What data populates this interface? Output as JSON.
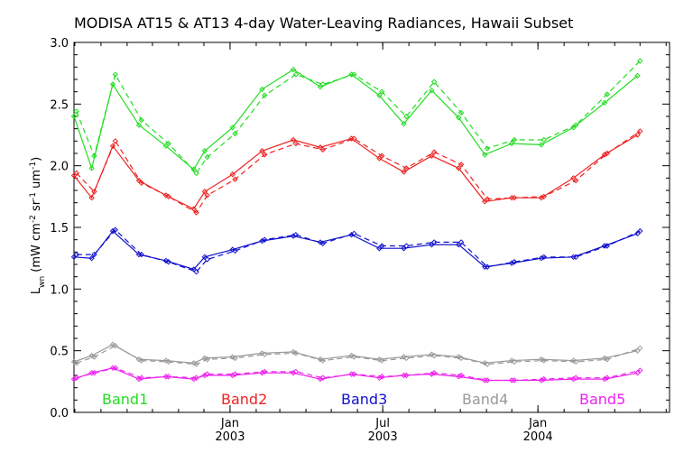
{
  "chart_data": {
    "type": "line",
    "title": "MODISA AT15 & AT13 4-day Water-Leaving Radiances, Hawaii Subset",
    "ylabel": {
      "base": "L",
      "sub": "wn",
      "units_open": " (mW cm",
      "exp1": "-2",
      "mid": " sr",
      "exp2": "-1",
      "um": " um",
      "exp3": "-1",
      "close": ")"
    },
    "ylim": [
      0,
      3.0
    ],
    "yticks": [
      "0.0",
      "0.5",
      "1.0",
      "1.5",
      "2.0",
      "2.5",
      "3.0"
    ],
    "xlim": [
      "2002-06-30",
      "2004-06-05"
    ],
    "xticks": [
      {
        "date": "2003-01-01",
        "month": "Jan",
        "year": "2003"
      },
      {
        "date": "2003-07-01",
        "month": "Jul",
        "year": "2003"
      },
      {
        "date": "2004-01-01",
        "month": "Jan",
        "year": "2004"
      }
    ],
    "grid": false,
    "legend": "bottom",
    "x": [
      "2002-06-30",
      "2002-07-31",
      "2002-09-01",
      "2002-10-03",
      "2002-11-04",
      "2002-12-06",
      "2003-01-01",
      "2003-02-02",
      "2003-03-06",
      "2003-04-06",
      "2003-05-08",
      "2003-06-09",
      "2003-07-01",
      "2003-08-02",
      "2003-09-02",
      "2003-10-04",
      "2003-11-05",
      "2003-12-07",
      "2004-01-01",
      "2004-02-02",
      "2004-03-05",
      "2004-04-05",
      "2004-05-07",
      "2004-06-05"
    ],
    "series": [
      {
        "name": "Band1",
        "color": "#22dd22",
        "solid": [
          2.4,
          1.98,
          2.66,
          2.33,
          2.16,
          1.97,
          2.12,
          2.31,
          2.62,
          2.78,
          2.64,
          2.74,
          2.57,
          2.34,
          2.61,
          2.39,
          2.09,
          2.18,
          2.17,
          2.31,
          2.51,
          2.73
        ],
        "dashed": [
          2.44,
          2.08,
          2.74,
          2.37,
          2.18,
          1.94,
          2.07,
          2.26,
          2.57,
          2.74,
          2.66,
          2.74,
          2.6,
          2.4,
          2.68,
          2.43,
          2.14,
          2.21,
          2.21,
          2.33,
          2.58,
          2.85
        ]
      },
      {
        "name": "Band2",
        "color": "#ee2222",
        "solid": [
          1.92,
          1.74,
          2.16,
          1.88,
          1.76,
          1.65,
          1.79,
          1.93,
          2.12,
          2.21,
          2.15,
          2.22,
          2.06,
          1.95,
          2.08,
          1.98,
          1.71,
          1.74,
          1.74,
          1.9,
          2.09,
          2.25
        ],
        "dashed": [
          1.94,
          1.79,
          2.2,
          1.86,
          1.75,
          1.62,
          1.76,
          1.89,
          2.09,
          2.18,
          2.13,
          2.22,
          2.08,
          1.98,
          2.11,
          2.01,
          1.73,
          1.74,
          1.75,
          1.88,
          2.1,
          2.28
        ]
      },
      {
        "name": "Band3",
        "color": "#1111cc",
        "solid": [
          1.26,
          1.25,
          1.47,
          1.28,
          1.23,
          1.16,
          1.26,
          1.32,
          1.39,
          1.43,
          1.38,
          1.44,
          1.33,
          1.33,
          1.36,
          1.36,
          1.18,
          1.21,
          1.25,
          1.26,
          1.35,
          1.45
        ],
        "dashed": [
          1.28,
          1.28,
          1.48,
          1.28,
          1.22,
          1.14,
          1.24,
          1.31,
          1.4,
          1.44,
          1.37,
          1.45,
          1.35,
          1.35,
          1.38,
          1.38,
          1.18,
          1.22,
          1.26,
          1.26,
          1.35,
          1.47
        ]
      },
      {
        "name": "Band4",
        "color": "#999999",
        "solid": [
          0.41,
          0.46,
          0.55,
          0.43,
          0.42,
          0.4,
          0.44,
          0.45,
          0.48,
          0.49,
          0.43,
          0.46,
          0.43,
          0.45,
          0.47,
          0.45,
          0.4,
          0.42,
          0.43,
          0.42,
          0.44,
          0.5
        ],
        "dashed": [
          0.4,
          0.45,
          0.54,
          0.42,
          0.41,
          0.39,
          0.43,
          0.44,
          0.47,
          0.48,
          0.42,
          0.45,
          0.42,
          0.44,
          0.46,
          0.44,
          0.39,
          0.41,
          0.42,
          0.41,
          0.43,
          0.52
        ]
      },
      {
        "name": "Band5",
        "color": "#ee22ee",
        "solid": [
          0.27,
          0.32,
          0.36,
          0.27,
          0.29,
          0.27,
          0.3,
          0.3,
          0.32,
          0.32,
          0.27,
          0.31,
          0.28,
          0.3,
          0.31,
          0.29,
          0.26,
          0.26,
          0.26,
          0.27,
          0.27,
          0.32
        ],
        "dashed": [
          0.28,
          0.32,
          0.36,
          0.28,
          0.29,
          0.28,
          0.31,
          0.31,
          0.33,
          0.33,
          0.28,
          0.31,
          0.29,
          0.3,
          0.32,
          0.3,
          0.26,
          0.26,
          0.27,
          0.28,
          0.28,
          0.34
        ]
      }
    ],
    "x_index_solid": [
      0,
      1,
      2,
      3,
      4,
      5,
      6,
      7,
      8,
      9,
      10,
      11,
      12,
      13,
      14,
      15,
      16,
      17,
      18,
      19,
      20,
      21
    ],
    "x_dates": [
      "2002-06-30",
      "2002-07-21",
      "2002-08-15",
      "2002-09-15",
      "2002-10-17",
      "2002-11-19",
      "2002-12-02",
      "2002-12-31",
      "2003-02-03",
      "2003-03-07",
      "2003-04-10",
      "2003-05-11",
      "2003-06-13",
      "2003-07-13",
      "2003-08-18",
      "2003-09-16",
      "2003-10-17",
      "2003-11-17",
      "2003-12-28",
      "2004-01-29",
      "2004-02-28",
      "2004-04-02",
      "2004-05-06",
      "2004-06-05"
    ],
    "point_dates": [
      "2002-06-30",
      "2002-07-21",
      "2002-08-15",
      "2002-09-15",
      "2002-10-17",
      "2002-11-19",
      "2002-12-02",
      "2003-01-04",
      "2003-02-08",
      "2003-03-17",
      "2003-04-18",
      "2003-05-25",
      "2003-06-27",
      "2003-07-26",
      "2003-08-28",
      "2003-09-29",
      "2003-10-30",
      "2003-12-01",
      "2004-01-05",
      "2004-02-12",
      "2004-03-20",
      "2004-04-28"
    ]
  }
}
